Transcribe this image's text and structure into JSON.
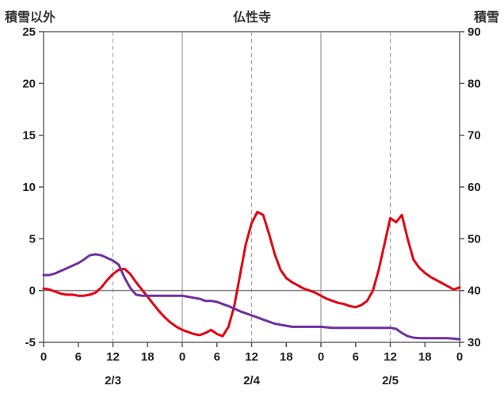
{
  "header": {
    "left_label": "積雪以外",
    "title": "仏性寺",
    "right_label": "積雪"
  },
  "colors": {
    "frame": "#8c8c8c",
    "grid": "#999999",
    "zero_line": "#808080",
    "tick": "#555555",
    "temperature": "#e60012",
    "snow": "#7030a0"
  },
  "chart_data": {
    "type": "line",
    "title": "仏性寺",
    "x_axis": {
      "total_hours": 72,
      "tick_hours": [
        0,
        6,
        12,
        18,
        24,
        30,
        36,
        42,
        48,
        54,
        60,
        66,
        72
      ],
      "tick_labels": [
        "0",
        "6",
        "12",
        "18",
        "0",
        "6",
        "12",
        "18",
        "0",
        "6",
        "12",
        "18",
        "0"
      ],
      "day_labels": [
        {
          "label": "2/3",
          "hour": 12
        },
        {
          "label": "2/4",
          "hour": 36
        },
        {
          "label": "2/5",
          "hour": 60
        }
      ]
    },
    "left_axis": {
      "label": "積雪以外",
      "range": [
        -5,
        25
      ],
      "ticks": [
        25,
        20,
        15,
        10,
        5,
        0,
        -5
      ]
    },
    "right_axis": {
      "label": "積雪",
      "range": [
        30,
        90
      ],
      "ticks": [
        90,
        80,
        70,
        60,
        50,
        40,
        30
      ]
    },
    "gridlines": {
      "dashed_hours": [
        12,
        36,
        60
      ],
      "solid_hours": [
        24,
        48
      ],
      "zero_line_left_value": 0
    },
    "series": [
      {
        "name": "temperature",
        "axis": "left",
        "color": "#e60012",
        "values": [
          0.2,
          0.1,
          -0.1,
          -0.3,
          -0.4,
          -0.4,
          -0.5,
          -0.5,
          -0.4,
          -0.2,
          0.3,
          1.0,
          1.6,
          2.0,
          2.1,
          1.6,
          0.8,
          0.1,
          -0.6,
          -1.3,
          -2.0,
          -2.6,
          -3.1,
          -3.5,
          -3.8,
          -4.0,
          -4.2,
          -4.3,
          -4.1,
          -3.8,
          -4.2,
          -4.4,
          -3.5,
          -1.5,
          1.5,
          4.5,
          6.5,
          7.6,
          7.3,
          5.5,
          3.5,
          2.0,
          1.2,
          0.8,
          0.5,
          0.2,
          0.0,
          -0.2,
          -0.5,
          -0.8,
          -1.0,
          -1.2,
          -1.3,
          -1.5,
          -1.6,
          -1.4,
          -1.0,
          0.0,
          2.0,
          4.5,
          7.0,
          6.6,
          7.3,
          5.0,
          3.0,
          2.2,
          1.7,
          1.3,
          1.0,
          0.7,
          0.4,
          0.1,
          0.3
        ]
      },
      {
        "name": "snow-depth",
        "axis": "right",
        "color": "#7030a0",
        "values": [
          43.0,
          43.0,
          43.3,
          43.8,
          44.3,
          44.8,
          45.3,
          46.0,
          46.8,
          47.0,
          46.8,
          46.3,
          45.8,
          45.0,
          42.5,
          40.5,
          39.2,
          39.0,
          39.0,
          39.0,
          39.0,
          39.0,
          39.0,
          39.0,
          39.0,
          38.8,
          38.6,
          38.4,
          38.0,
          38.0,
          37.8,
          37.4,
          37.0,
          36.5,
          36.0,
          35.6,
          35.2,
          34.8,
          34.4,
          34.0,
          33.6,
          33.4,
          33.2,
          33.0,
          33.0,
          33.0,
          33.0,
          33.0,
          33.0,
          32.9,
          32.8,
          32.8,
          32.8,
          32.8,
          32.8,
          32.8,
          32.8,
          32.8,
          32.8,
          32.8,
          32.8,
          32.6,
          31.8,
          31.2,
          30.9,
          30.8,
          30.8,
          30.8,
          30.8,
          30.8,
          30.8,
          30.7,
          30.6
        ]
      }
    ]
  }
}
